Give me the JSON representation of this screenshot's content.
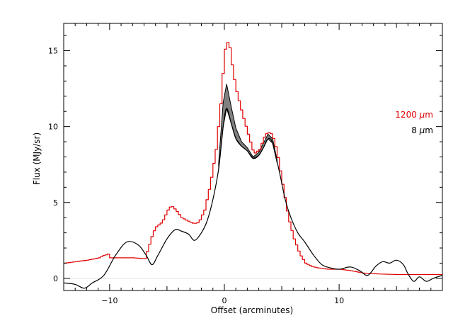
{
  "chart_data": {
    "type": "line",
    "title": "",
    "xlabel": "Offset (arcminutes)",
    "ylabel": "Flux (MJy/sr)",
    "xlim": [
      -14,
      19
    ],
    "ylim": [
      -0.8,
      16.8
    ],
    "x_ticks": [
      -10,
      0,
      10
    ],
    "x_tick_labels": [
      "−10",
      "0",
      "10"
    ],
    "y_ticks": [
      0,
      5,
      10,
      15
    ],
    "y_tick_labels": [
      "0",
      "5",
      "10",
      "15"
    ],
    "grid": false,
    "legend_position": "right",
    "series": [
      {
        "name": "1200 µm",
        "label_unit": "µm",
        "label_value": "1200",
        "color": "#e00000",
        "style": "step",
        "points": [
          [
            -14,
            1.0
          ],
          [
            -12,
            1.2
          ],
          [
            -11,
            1.35
          ],
          [
            -10.6,
            1.5
          ],
          [
            -10.2,
            1.6
          ],
          [
            -10.0,
            1.35
          ],
          [
            -9,
            1.35
          ],
          [
            -8,
            1.35
          ],
          [
            -7,
            1.3
          ],
          [
            -6.7,
            2.0
          ],
          [
            -6.3,
            3.0
          ],
          [
            -6.0,
            3.4
          ],
          [
            -5.5,
            3.7
          ],
          [
            -5.0,
            4.5
          ],
          [
            -4.7,
            4.8
          ],
          [
            -4.3,
            4.5
          ],
          [
            -3.8,
            4.0
          ],
          [
            -3.3,
            3.8
          ],
          [
            -2.7,
            3.6
          ],
          [
            -2.3,
            3.7
          ],
          [
            -1.8,
            4.5
          ],
          [
            -1.3,
            6.2
          ],
          [
            -0.8,
            8.5
          ],
          [
            -0.4,
            11.5
          ],
          [
            -0.1,
            14.5
          ],
          [
            0.1,
            15.7
          ],
          [
            0.4,
            15.2
          ],
          [
            0.7,
            13.5
          ],
          [
            1.0,
            12.3
          ],
          [
            1.5,
            10.8
          ],
          [
            2.0,
            9.5
          ],
          [
            2.5,
            8.2
          ],
          [
            3.0,
            8.5
          ],
          [
            3.5,
            9.5
          ],
          [
            3.8,
            9.6
          ],
          [
            4.1,
            9.5
          ],
          [
            4.5,
            8.4
          ],
          [
            5.0,
            6.2
          ],
          [
            5.5,
            4.0
          ],
          [
            6.0,
            2.6
          ],
          [
            6.5,
            1.6
          ],
          [
            7.0,
            1.0
          ],
          [
            7.5,
            0.8
          ],
          [
            8,
            0.7
          ],
          [
            9,
            0.6
          ],
          [
            10,
            0.6
          ],
          [
            11,
            0.5
          ],
          [
            12,
            0.35
          ],
          [
            13,
            0.3
          ],
          [
            15,
            0.25
          ],
          [
            17,
            0.25
          ],
          [
            19,
            0.25
          ]
        ]
      },
      {
        "name": "8 µm",
        "label_unit": "µm",
        "label_value": "8",
        "color": "#000000",
        "style": "line",
        "points": [
          [
            -14,
            -0.3
          ],
          [
            -13,
            -0.4
          ],
          [
            -12.2,
            -0.65
          ],
          [
            -11.5,
            -0.3
          ],
          [
            -10.5,
            0.2
          ],
          [
            -9.5,
            1.5
          ],
          [
            -8.5,
            2.4
          ],
          [
            -7.5,
            2.2
          ],
          [
            -6.8,
            1.5
          ],
          [
            -6.3,
            0.9
          ],
          [
            -5.8,
            1.5
          ],
          [
            -5.0,
            2.6
          ],
          [
            -4.3,
            3.2
          ],
          [
            -3.7,
            3.1
          ],
          [
            -3.1,
            2.9
          ],
          [
            -2.6,
            2.5
          ],
          [
            -2.0,
            3.0
          ],
          [
            -1.5,
            3.8
          ],
          [
            -1.0,
            5.2
          ],
          [
            -0.5,
            7.2
          ],
          [
            -0.1,
            10.0
          ],
          [
            0.2,
            11.2
          ],
          [
            0.6,
            10.2
          ],
          [
            1.0,
            9.2
          ],
          [
            1.5,
            8.7
          ],
          [
            2.0,
            8.4
          ],
          [
            2.5,
            7.9
          ],
          [
            3.0,
            8.1
          ],
          [
            3.4,
            8.6
          ],
          [
            3.8,
            9.2
          ],
          [
            4.2,
            8.9
          ],
          [
            4.8,
            7.0
          ],
          [
            5.3,
            5.2
          ],
          [
            5.8,
            4.0
          ],
          [
            6.4,
            3.0
          ],
          [
            7.0,
            2.4
          ],
          [
            7.8,
            1.5
          ],
          [
            8.5,
            0.9
          ],
          [
            9.2,
            0.7
          ],
          [
            10,
            0.6
          ],
          [
            11,
            0.75
          ],
          [
            11.8,
            0.5
          ],
          [
            12.5,
            0.2
          ],
          [
            13.2,
            0.8
          ],
          [
            13.8,
            1.1
          ],
          [
            14.4,
            1.0
          ],
          [
            15.0,
            1.2
          ],
          [
            15.6,
            0.9
          ],
          [
            16.0,
            0.3
          ],
          [
            16.5,
            -0.2
          ],
          [
            17.0,
            0.1
          ],
          [
            17.6,
            -0.2
          ],
          [
            18.2,
            0.0
          ],
          [
            19,
            0.2
          ]
        ]
      }
    ],
    "uncertainty_band": {
      "series": "8 µm",
      "color": "#808080",
      "lower": [
        [
          -0.5,
          7.2
        ],
        [
          -0.1,
          10.0
        ],
        [
          0.2,
          11.2
        ],
        [
          0.6,
          10.2
        ],
        [
          1.0,
          9.2
        ],
        [
          1.5,
          8.7
        ],
        [
          2.0,
          8.4
        ],
        [
          2.5,
          7.9
        ],
        [
          3.0,
          8.1
        ],
        [
          3.4,
          8.6
        ],
        [
          3.8,
          9.2
        ],
        [
          4.2,
          8.9
        ],
        [
          4.6,
          7.6
        ]
      ],
      "upper": [
        [
          -0.5,
          7.6
        ],
        [
          -0.1,
          11.6
        ],
        [
          0.2,
          12.8
        ],
        [
          0.6,
          11.3
        ],
        [
          1.0,
          9.9
        ],
        [
          1.5,
          9.0
        ],
        [
          2.0,
          8.6
        ],
        [
          2.5,
          8.0
        ],
        [
          3.0,
          8.3
        ],
        [
          3.4,
          8.9
        ],
        [
          3.8,
          9.5
        ],
        [
          4.2,
          9.2
        ],
        [
          4.6,
          7.8
        ]
      ]
    }
  }
}
